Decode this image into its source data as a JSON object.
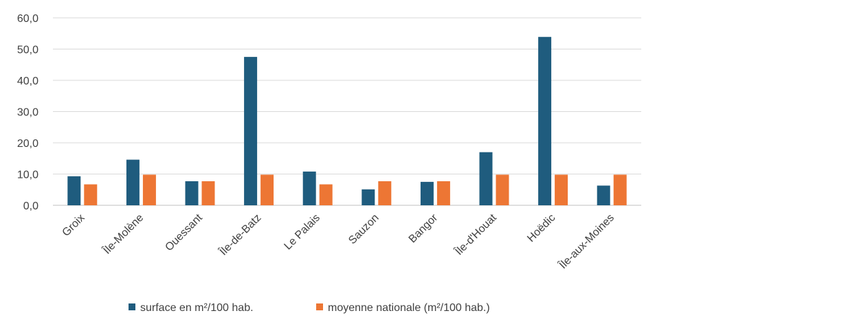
{
  "chart_data": {
    "type": "bar",
    "title": "",
    "xlabel": "",
    "ylabel": "",
    "categories": [
      "Groix",
      "Île-Molène",
      "Ouessant",
      "Île-de-Batz",
      "Le Palais",
      "Sauzon",
      "Bangor",
      "Île-d'Houat",
      "Hoëdic",
      "Île-aux-Moines"
    ],
    "series": [
      {
        "name": "surface en m²/100 hab.",
        "color": "#1F5C7E",
        "values": [
          9.3,
          14.6,
          7.7,
          47.5,
          10.8,
          5.1,
          7.5,
          17.0,
          53.9,
          6.3
        ]
      },
      {
        "name": "moyenne nationale (m²/100 hab.)",
        "color": "#ED7634",
        "values": [
          6.7,
          9.8,
          7.7,
          9.8,
          6.7,
          7.7,
          7.7,
          9.8,
          9.8,
          9.8
        ]
      }
    ],
    "ylim": [
      0,
      60
    ],
    "yticks": [
      "0,0",
      "10,0",
      "20,0",
      "30,0",
      "40,0",
      "50,0",
      "60,0"
    ],
    "grid": true,
    "legend_position": "bottom"
  }
}
